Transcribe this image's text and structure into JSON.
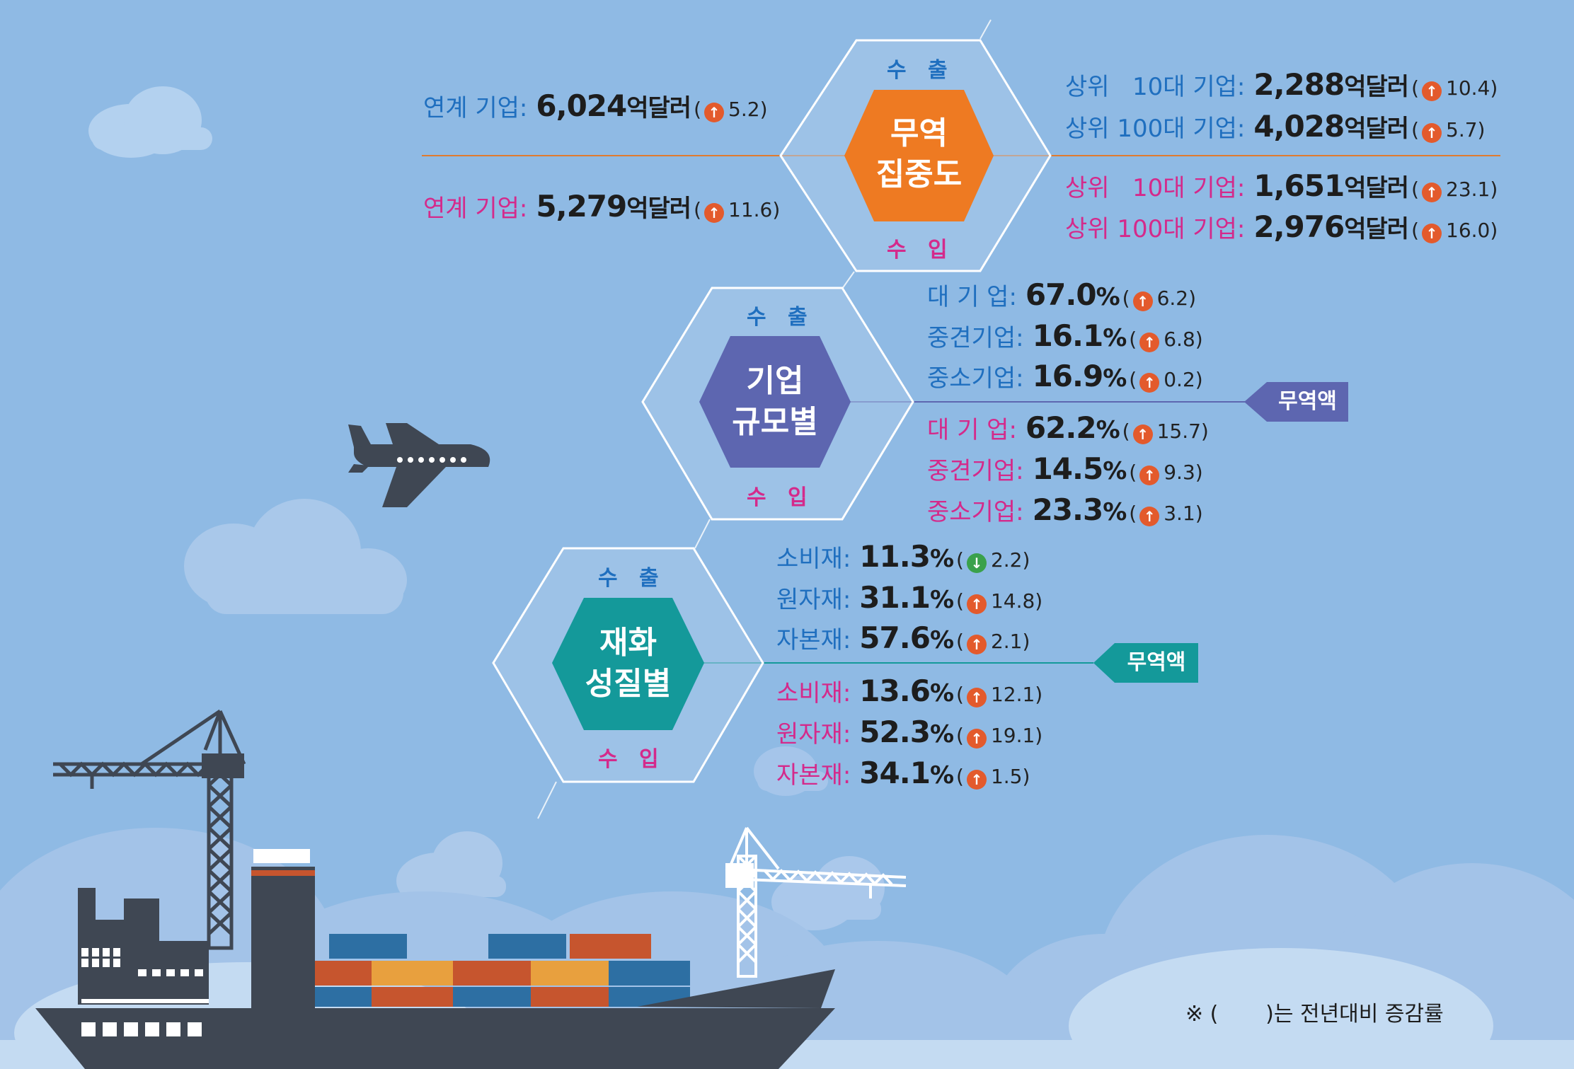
{
  "colors": {
    "background": "#8fbae4",
    "export_text": "#1f6fbf",
    "import_text": "#d42a8b",
    "hex_orange": "#ee7a22",
    "hex_purple": "#5d66b0",
    "hex_teal": "#14999a",
    "arrow_up": "#e35a2c",
    "arrow_down": "#3aa14b",
    "ship_dark": "#3f4753"
  },
  "icons": [
    "airplane-icon",
    "cargo-ship-icon",
    "port-crane-icon",
    "cloud-icon",
    "up-arrow-icon",
    "down-arrow-icon"
  ],
  "concentration": {
    "title": "무역\n집중도",
    "export_header": "수 출",
    "import_header": "수 입",
    "export_linked": {
      "label": "연계 기업:",
      "value": "6,024",
      "unit": "억달러",
      "change": "5.2",
      "dir": "up"
    },
    "import_linked": {
      "label": "연계 기업:",
      "value": "5,279",
      "unit": "억달러",
      "change": "11.6",
      "dir": "up"
    },
    "export_top": [
      {
        "label": "상위   10대 기업:",
        "value": "2,288",
        "unit": "억달러",
        "change": "10.4",
        "dir": "up"
      },
      {
        "label": "상위 100대 기업:",
        "value": "4,028",
        "unit": "억달러",
        "change": "5.7",
        "dir": "up"
      }
    ],
    "import_top": [
      {
        "label": "상위   10대 기업:",
        "value": "1,651",
        "unit": "억달러",
        "change": "23.1",
        "dir": "up"
      },
      {
        "label": "상위 100대 기업:",
        "value": "2,976",
        "unit": "억달러",
        "change": "16.0",
        "dir": "up"
      }
    ]
  },
  "size": {
    "title": "기업\n규모별",
    "export_header": "수 출",
    "import_header": "수 입",
    "tag": "무역액",
    "export": [
      {
        "label": "대 기 업:",
        "value": "67.0",
        "unit": "%",
        "change": "6.2",
        "dir": "up"
      },
      {
        "label": "중견기업:",
        "value": "16.1",
        "unit": "%",
        "change": "6.8",
        "dir": "up"
      },
      {
        "label": "중소기업:",
        "value": "16.9",
        "unit": "%",
        "change": "0.2",
        "dir": "up"
      }
    ],
    "import": [
      {
        "label": "대 기 업:",
        "value": "62.2",
        "unit": "%",
        "change": "15.7",
        "dir": "up"
      },
      {
        "label": "중견기업:",
        "value": "14.5",
        "unit": "%",
        "change": "9.3",
        "dir": "up"
      },
      {
        "label": "중소기업:",
        "value": "23.3",
        "unit": "%",
        "change": "3.1",
        "dir": "up"
      }
    ]
  },
  "goods": {
    "title": "재화\n성질별",
    "export_header": "수 출",
    "import_header": "수 입",
    "tag": "무역액",
    "export": [
      {
        "label": "소비재:",
        "value": "11.3",
        "unit": "%",
        "change": "2.2",
        "dir": "down"
      },
      {
        "label": "원자재:",
        "value": "31.1",
        "unit": "%",
        "change": "14.8",
        "dir": "up"
      },
      {
        "label": "자본재:",
        "value": "57.6",
        "unit": "%",
        "change": "2.1",
        "dir": "up"
      }
    ],
    "import": [
      {
        "label": "소비재:",
        "value": "13.6",
        "unit": "%",
        "change": "12.1",
        "dir": "up"
      },
      {
        "label": "원자재:",
        "value": "52.3",
        "unit": "%",
        "change": "19.1",
        "dir": "up"
      },
      {
        "label": "자본재:",
        "value": "34.1",
        "unit": "%",
        "change": "1.5",
        "dir": "up"
      }
    ]
  },
  "footnote": "※ (       )는 전년대비 증감률"
}
